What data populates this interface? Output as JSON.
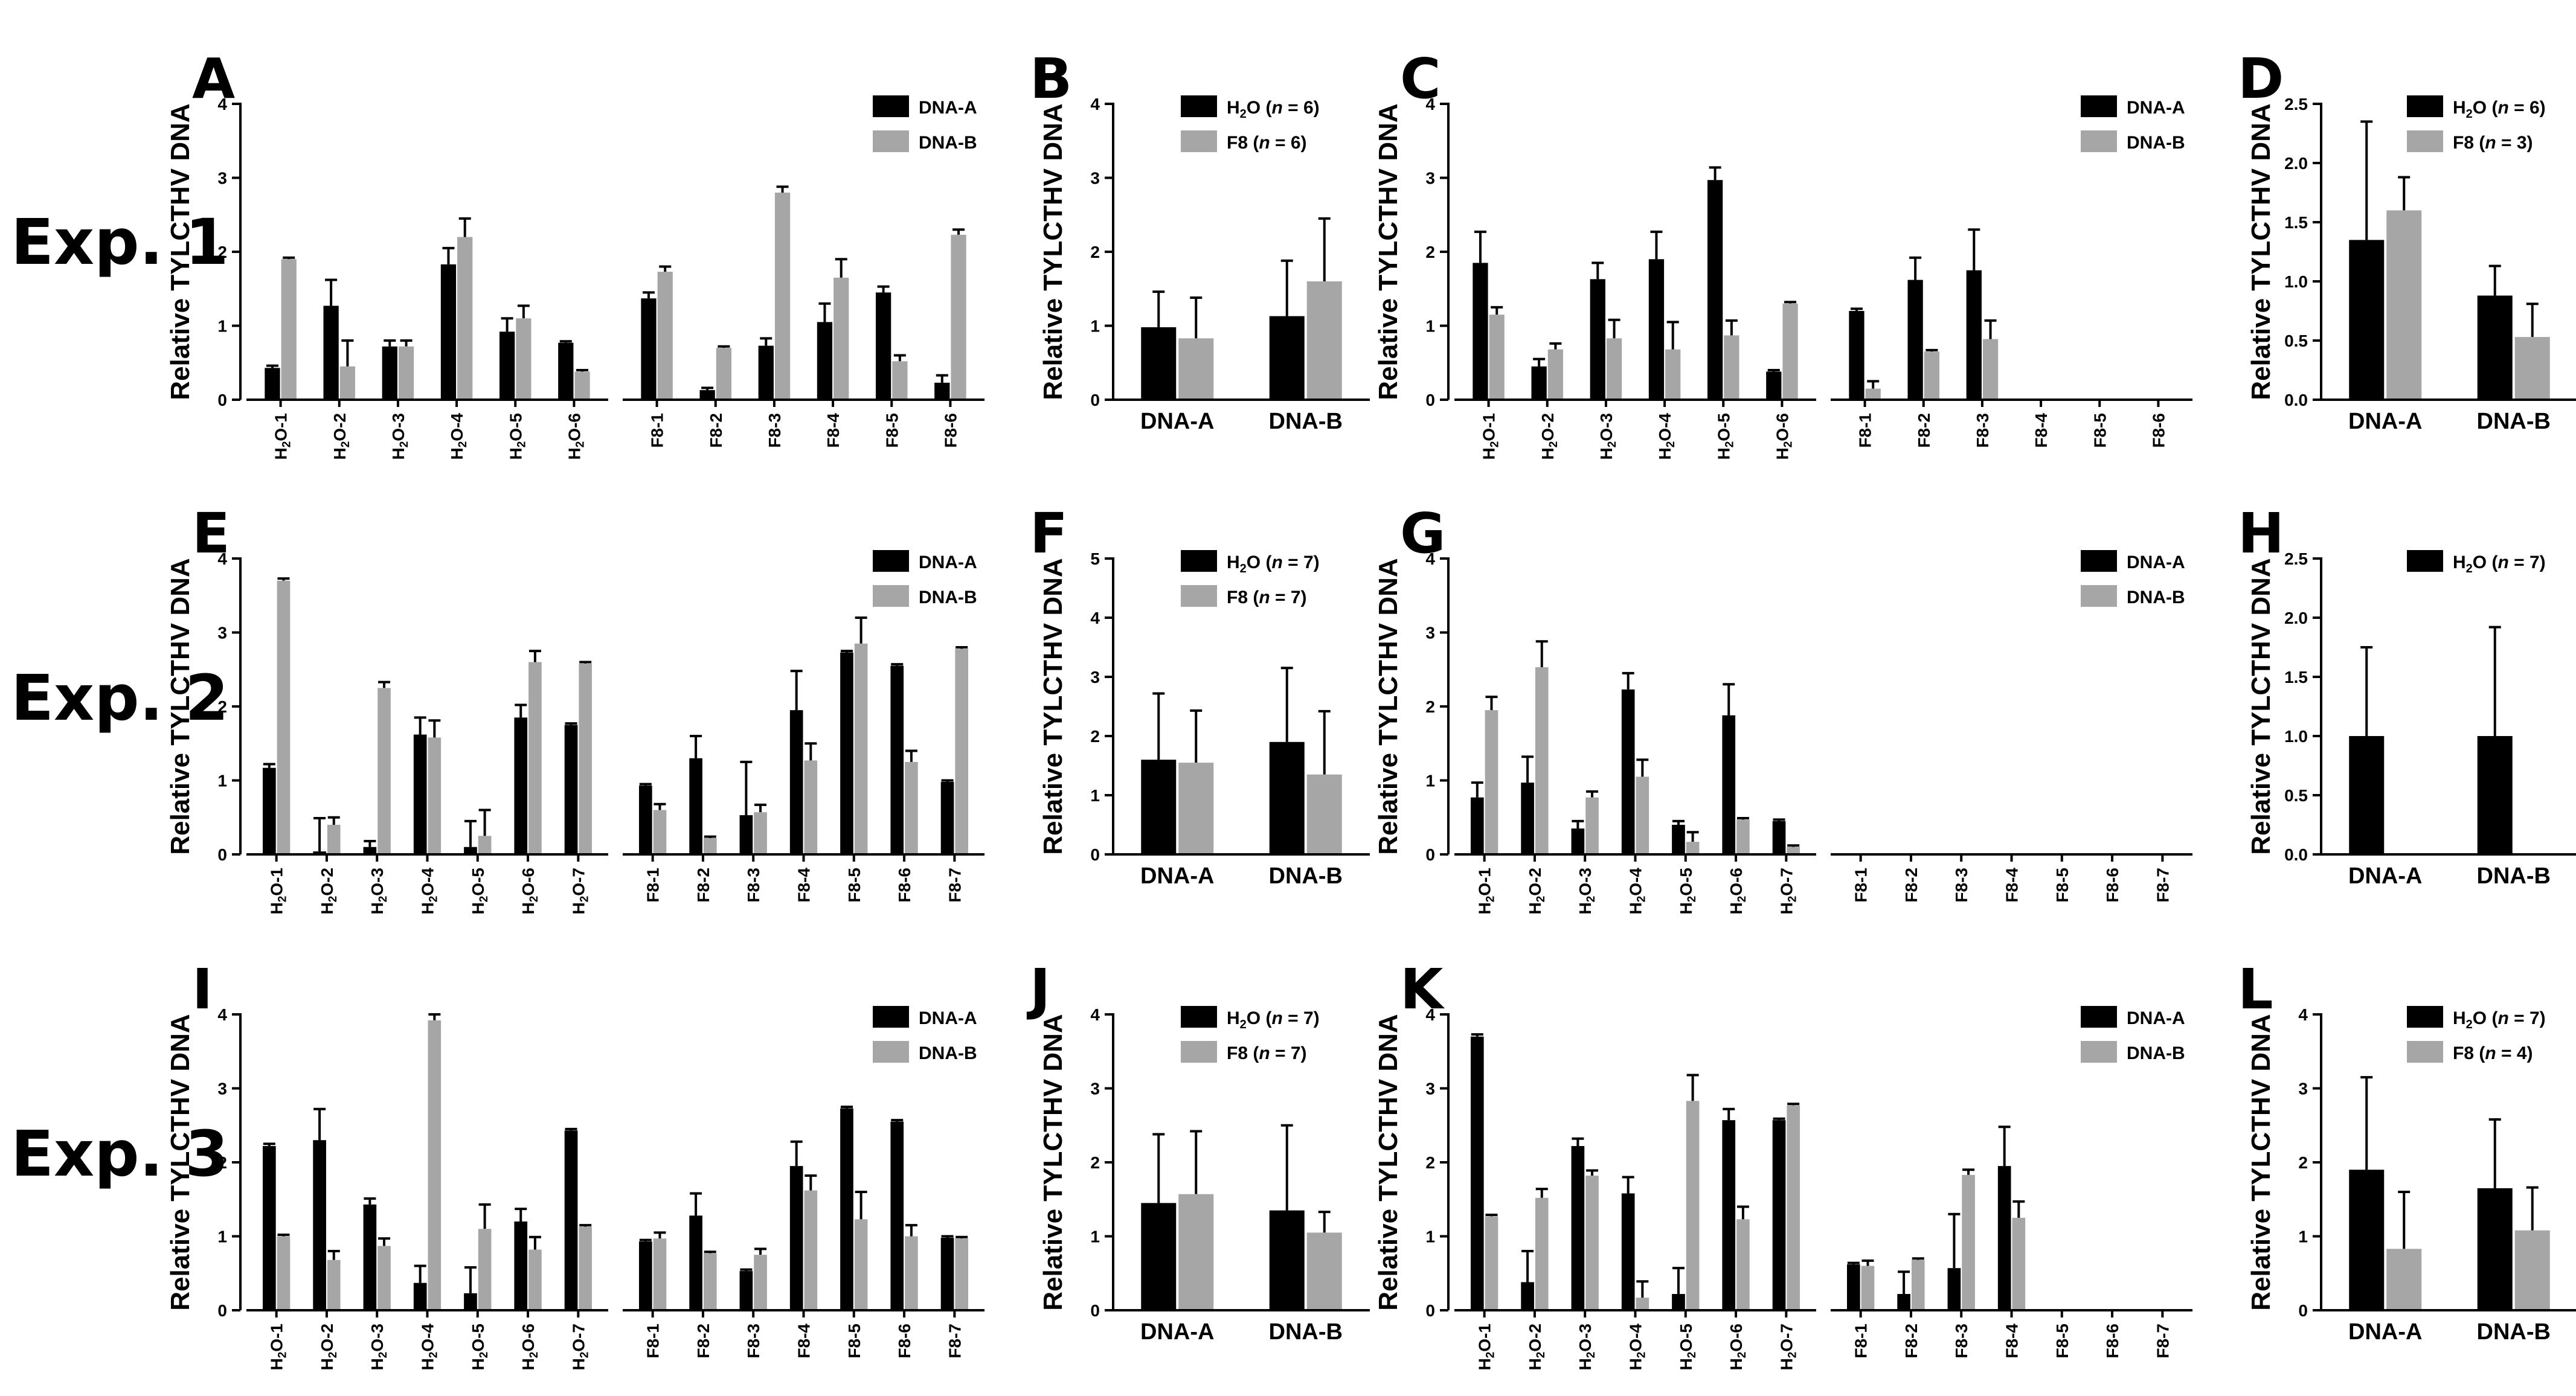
{
  "row_labels": [
    "Exp. 1",
    "Exp. 2",
    "Exp. 3"
  ],
  "colors": {
    "dna_a": "#000000",
    "dna_b": "#a6a6a6",
    "h2o": "#000000",
    "f8": "#a6a6a6"
  },
  "chart_data": [
    {
      "panel": "A",
      "type": "bar",
      "ylabel": "Relative TYLCTHV DNA",
      "ylim": [
        0,
        4
      ],
      "yticks": [
        "0",
        "1",
        "2",
        "3",
        "4"
      ],
      "groups": [
        {
          "labels": [
            "H2O-1",
            "H2O-2",
            "H2O-3",
            "H2O-4",
            "H2O-5",
            "H2O-6"
          ]
        },
        {
          "labels": [
            "F8-1",
            "F8-2",
            "F8-3",
            "F8-4",
            "F8-5",
            "F8-6"
          ]
        }
      ],
      "series": [
        {
          "name": "DNA-A",
          "values": [
            0.43,
            1.27,
            0.72,
            1.83,
            0.92,
            0.77,
            1.37,
            0.13,
            0.73,
            1.05,
            1.45,
            0.23
          ],
          "errors": [
            0.03,
            0.35,
            0.08,
            0.22,
            0.18,
            0.02,
            0.08,
            0.03,
            0.1,
            0.25,
            0.08,
            0.1
          ]
        },
        {
          "name": "DNA-B",
          "values": [
            1.9,
            0.45,
            0.72,
            2.2,
            1.1,
            0.38,
            1.73,
            0.7,
            2.8,
            1.65,
            0.52,
            2.23
          ],
          "errors": [
            0.02,
            0.35,
            0.08,
            0.25,
            0.17,
            0.02,
            0.07,
            0.02,
            0.08,
            0.25,
            0.08,
            0.07
          ]
        }
      ],
      "legend": [
        {
          "text": "DNA-A",
          "color": "#000000"
        },
        {
          "text": "DNA-B",
          "color": "#a6a6a6"
        }
      ]
    },
    {
      "panel": "B",
      "type": "bar",
      "ylabel": "Relative TYLCTHV DNA",
      "ylim": [
        0,
        4
      ],
      "yticks": [
        "0",
        "1",
        "2",
        "3",
        "4"
      ],
      "categories": [
        "DNA-A",
        "DNA-B"
      ],
      "series": [
        {
          "name": "H2O (n = 6)",
          "values": [
            0.98,
            1.13
          ],
          "errors": [
            0.48,
            0.75
          ]
        },
        {
          "name": "F8 (n = 6)",
          "values": [
            0.83,
            1.6
          ],
          "errors": [
            0.55,
            0.85
          ]
        }
      ],
      "legend": [
        {
          "pre": "H",
          "sub": "2",
          "post": "O (",
          "n": "n",
          "rest": " = 6)",
          "color": "#000000"
        },
        {
          "pre": "F8 (",
          "n": "n",
          "rest": " = 6)",
          "color": "#a6a6a6"
        }
      ]
    },
    {
      "panel": "C",
      "type": "bar",
      "ylabel": "Relative TYLCTHV DNA",
      "ylim": [
        0,
        4
      ],
      "yticks": [
        "0",
        "1",
        "2",
        "3",
        "4"
      ],
      "groups": [
        {
          "labels": [
            "H2O-1",
            "H2O-2",
            "H2O-3",
            "H2O-4",
            "H2O-5",
            "H2O-6"
          ]
        },
        {
          "labels": [
            "F8-1",
            "F8-2",
            "F8-3",
            "F8-4",
            "F8-5",
            "F8-6"
          ]
        }
      ],
      "series": [
        {
          "name": "DNA-A",
          "values": [
            1.85,
            0.45,
            1.63,
            1.9,
            2.97,
            0.38,
            1.2,
            1.62,
            1.75,
            null,
            null,
            null
          ],
          "errors": [
            0.42,
            0.1,
            0.22,
            0.37,
            0.17,
            0.02,
            0.03,
            0.3,
            0.55,
            null,
            null,
            null
          ]
        },
        {
          "name": "DNA-B",
          "values": [
            1.15,
            0.68,
            0.83,
            0.68,
            0.87,
            1.3,
            0.15,
            0.65,
            0.82,
            null,
            null,
            null
          ],
          "errors": [
            0.1,
            0.08,
            0.25,
            0.37,
            0.2,
            0.02,
            0.1,
            0.02,
            0.25,
            null,
            null,
            null
          ]
        }
      ],
      "legend": [
        {
          "text": "DNA-A",
          "color": "#000000"
        },
        {
          "text": "DNA-B",
          "color": "#a6a6a6"
        }
      ]
    },
    {
      "panel": "D",
      "type": "bar",
      "ylabel": "Relative TYLCTHV DNA",
      "ylim": [
        0,
        2.5
      ],
      "yticks": [
        "0.0",
        "0.5",
        "1.0",
        "1.5",
        "2.0",
        "2.5"
      ],
      "categories": [
        "DNA-A",
        "DNA-B"
      ],
      "series": [
        {
          "name": "H2O (n = 6)",
          "values": [
            1.35,
            0.88
          ],
          "errors": [
            1.0,
            0.25
          ]
        },
        {
          "name": "F8 (n = 3)",
          "values": [
            1.6,
            0.53
          ],
          "errors": [
            0.28,
            0.28
          ]
        }
      ],
      "legend": [
        {
          "pre": "H",
          "sub": "2",
          "post": "O (",
          "n": "n",
          "rest": " = 6)",
          "color": "#000000"
        },
        {
          "pre": "F8 (",
          "n": "n",
          "rest": " = 3)",
          "color": "#a6a6a6"
        }
      ]
    },
    {
      "panel": "E",
      "type": "bar",
      "ylabel": "Relative TYLCTHV DNA",
      "ylim": [
        0,
        4
      ],
      "yticks": [
        "0",
        "1",
        "2",
        "3",
        "4"
      ],
      "groups": [
        {
          "labels": [
            "H2O-1",
            "H2O-2",
            "H2O-3",
            "H2O-4",
            "H2O-5",
            "H2O-6",
            "H2O-7"
          ]
        },
        {
          "labels": [
            "F8-1",
            "F8-2",
            "F8-3",
            "F8-4",
            "F8-5",
            "F8-6",
            "F8-7"
          ]
        }
      ],
      "series": [
        {
          "name": "DNA-A",
          "values": [
            1.17,
            0.04,
            0.1,
            1.62,
            0.1,
            1.85,
            1.75,
            0.93,
            1.3,
            0.53,
            1.95,
            2.73,
            2.55,
            0.98
          ],
          "errors": [
            0.05,
            0.45,
            0.08,
            0.23,
            0.35,
            0.17,
            0.02,
            0.02,
            0.3,
            0.72,
            0.53,
            0.02,
            0.02,
            0.02
          ]
        },
        {
          "name": "DNA-B",
          "values": [
            3.7,
            0.4,
            2.25,
            1.58,
            0.25,
            2.6,
            2.58,
            0.6,
            0.22,
            0.57,
            1.27,
            2.85,
            1.25,
            2.78
          ],
          "errors": [
            0.03,
            0.1,
            0.08,
            0.23,
            0.35,
            0.15,
            0.02,
            0.08,
            0.02,
            0.1,
            0.23,
            0.35,
            0.15,
            0.02
          ]
        }
      ],
      "legend": [
        {
          "text": "DNA-A",
          "color": "#000000"
        },
        {
          "text": "DNA-B",
          "color": "#a6a6a6"
        }
      ]
    },
    {
      "panel": "F",
      "type": "bar",
      "ylabel": "Relative TYLCTHV DNA",
      "ylim": [
        0,
        5
      ],
      "yticks": [
        "0",
        "1",
        "2",
        "3",
        "4",
        "5"
      ],
      "categories": [
        "DNA-A",
        "DNA-B"
      ],
      "series": [
        {
          "name": "H2O (n = 7)",
          "values": [
            1.6,
            1.9
          ],
          "errors": [
            1.12,
            1.25
          ]
        },
        {
          "name": "F8 (n = 7)",
          "values": [
            1.55,
            1.35
          ],
          "errors": [
            0.88,
            1.07
          ]
        }
      ],
      "legend": [
        {
          "pre": "H",
          "sub": "2",
          "post": "O (",
          "n": "n",
          "rest": " = 7)",
          "color": "#000000"
        },
        {
          "pre": "F8 (",
          "n": "n",
          "rest": " = 7)",
          "color": "#a6a6a6"
        }
      ]
    },
    {
      "panel": "G",
      "type": "bar",
      "ylabel": "Relative TYLCTHV DNA",
      "ylim": [
        0,
        4
      ],
      "yticks": [
        "0",
        "1",
        "2",
        "3",
        "4"
      ],
      "groups": [
        {
          "labels": [
            "H2O-1",
            "H2O-2",
            "H2O-3",
            "H2O-4",
            "H2O-5",
            "H2O-6",
            "H2O-7"
          ]
        },
        {
          "labels": [
            "F8-1",
            "F8-2",
            "F8-3",
            "F8-4",
            "F8-5",
            "F8-6",
            "F8-7"
          ]
        }
      ],
      "series": [
        {
          "name": "DNA-A",
          "values": [
            0.77,
            0.97,
            0.35,
            2.23,
            0.4,
            1.88,
            0.45,
            null,
            null,
            null,
            null,
            null,
            null,
            null
          ],
          "errors": [
            0.2,
            0.35,
            0.1,
            0.22,
            0.05,
            0.42,
            0.02,
            null,
            null,
            null,
            null,
            null,
            null,
            null
          ]
        },
        {
          "name": "DNA-B",
          "values": [
            1.95,
            2.53,
            0.77,
            1.05,
            0.17,
            0.47,
            0.1,
            null,
            null,
            null,
            null,
            null,
            null,
            null
          ],
          "errors": [
            0.18,
            0.35,
            0.08,
            0.23,
            0.13,
            0.02,
            0.02,
            null,
            null,
            null,
            null,
            null,
            null,
            null
          ]
        }
      ],
      "legend": [
        {
          "text": "DNA-A",
          "color": "#000000"
        },
        {
          "text": "DNA-B",
          "color": "#a6a6a6"
        }
      ]
    },
    {
      "panel": "H",
      "type": "bar",
      "ylabel": "Relative TYLCTHV DNA",
      "ylim": [
        0,
        2.5
      ],
      "yticks": [
        "0.0",
        "0.5",
        "1.0",
        "1.5",
        "2.0",
        "2.5"
      ],
      "categories": [
        "DNA-A",
        "DNA-B"
      ],
      "series": [
        {
          "name": "H2O (n = 7)",
          "values": [
            1.0,
            1.0
          ],
          "errors": [
            0.75,
            0.92
          ]
        }
      ],
      "legend": [
        {
          "pre": "H",
          "sub": "2",
          "post": "O (",
          "n": "n",
          "rest": " = 7)",
          "color": "#000000"
        }
      ]
    },
    {
      "panel": "I",
      "type": "bar",
      "ylabel": "Relative TYLCTHV DNA",
      "ylim": [
        0,
        4
      ],
      "yticks": [
        "0",
        "1",
        "2",
        "3",
        "4"
      ],
      "groups": [
        {
          "labels": [
            "H2O-1",
            "H2O-2",
            "H2O-3",
            "H2O-4",
            "H2O-5",
            "H2O-6",
            "H2O-7"
          ]
        },
        {
          "labels": [
            "F8-1",
            "F8-2",
            "F8-3",
            "F8-4",
            "F8-5",
            "F8-6",
            "F8-7"
          ]
        }
      ],
      "series": [
        {
          "name": "DNA-A",
          "values": [
            2.22,
            2.3,
            1.43,
            0.37,
            0.23,
            1.2,
            2.43,
            0.93,
            1.28,
            0.53,
            1.95,
            2.73,
            2.55,
            0.98
          ],
          "errors": [
            0.03,
            0.42,
            0.08,
            0.23,
            0.35,
            0.17,
            0.02,
            0.02,
            0.3,
            0.02,
            0.33,
            0.02,
            0.02,
            0.02
          ]
        },
        {
          "name": "DNA-B",
          "values": [
            1.0,
            0.68,
            0.87,
            3.92,
            1.1,
            0.82,
            1.13,
            0.97,
            0.77,
            0.75,
            1.62,
            1.23,
            1.0,
            0.97
          ],
          "errors": [
            0.02,
            0.12,
            0.1,
            0.08,
            0.33,
            0.17,
            0.02,
            0.08,
            0.02,
            0.08,
            0.2,
            0.37,
            0.15,
            0.02
          ]
        }
      ],
      "legend": [
        {
          "text": "DNA-A",
          "color": "#000000"
        },
        {
          "text": "DNA-B",
          "color": "#a6a6a6"
        }
      ]
    },
    {
      "panel": "J",
      "type": "bar",
      "ylabel": "Relative TYLCTHV DNA",
      "ylim": [
        0,
        4
      ],
      "yticks": [
        "0",
        "1",
        "2",
        "3",
        "4"
      ],
      "categories": [
        "DNA-A",
        "DNA-B"
      ],
      "series": [
        {
          "name": "H2O (n = 7)",
          "values": [
            1.45,
            1.35
          ],
          "errors": [
            0.93,
            1.15
          ]
        },
        {
          "name": "F8 (n = 7)",
          "values": [
            1.57,
            1.05
          ],
          "errors": [
            0.85,
            0.28
          ]
        }
      ],
      "legend": [
        {
          "pre": "H",
          "sub": "2",
          "post": "O (",
          "n": "n",
          "rest": " = 7)",
          "color": "#000000"
        },
        {
          "pre": "F8 (",
          "n": "n",
          "rest": " = 7)",
          "color": "#a6a6a6"
        }
      ]
    },
    {
      "panel": "K",
      "type": "bar",
      "ylabel": "Relative TYLCTHV DNA",
      "ylim": [
        0,
        4
      ],
      "yticks": [
        "0",
        "1",
        "2",
        "3",
        "4"
      ],
      "groups": [
        {
          "labels": [
            "H2O-1",
            "H2O-2",
            "H2O-3",
            "H2O-4",
            "H2O-5",
            "H2O-6",
            "H2O-7"
          ]
        },
        {
          "labels": [
            "F8-1",
            "F8-2",
            "F8-3",
            "F8-4",
            "F8-5",
            "F8-6",
            "F8-7"
          ]
        }
      ],
      "series": [
        {
          "name": "DNA-A",
          "values": [
            3.7,
            0.38,
            2.22,
            1.58,
            0.22,
            2.57,
            2.57,
            0.62,
            0.22,
            0.57,
            1.95,
            null,
            null,
            null
          ],
          "errors": [
            0.03,
            0.42,
            0.1,
            0.22,
            0.35,
            0.15,
            0.02,
            0.02,
            0.3,
            0.73,
            0.53,
            null,
            null,
            null
          ]
        },
        {
          "name": "DNA-B",
          "values": [
            1.27,
            1.52,
            1.82,
            0.17,
            2.83,
            1.23,
            2.77,
            0.6,
            0.68,
            1.83,
            1.25,
            null,
            null,
            null
          ],
          "errors": [
            0.02,
            0.12,
            0.07,
            0.22,
            0.35,
            0.17,
            0.02,
            0.07,
            0.02,
            0.07,
            0.22,
            null,
            null,
            null
          ]
        }
      ],
      "legend": [
        {
          "text": "DNA-A",
          "color": "#000000"
        },
        {
          "text": "DNA-B",
          "color": "#a6a6a6"
        }
      ]
    },
    {
      "panel": "L",
      "type": "bar",
      "ylabel": "Relative TYLCTHV DNA",
      "ylim": [
        0,
        4
      ],
      "yticks": [
        "0",
        "1",
        "2",
        "3",
        "4"
      ],
      "categories": [
        "DNA-A",
        "DNA-B"
      ],
      "series": [
        {
          "name": "H2O (n = 7)",
          "values": [
            1.9,
            1.65
          ],
          "errors": [
            1.25,
            0.93
          ]
        },
        {
          "name": "F8 (n = 4)",
          "values": [
            0.83,
            1.08
          ],
          "errors": [
            0.77,
            0.58
          ]
        }
      ],
      "legend": [
        {
          "pre": "H",
          "sub": "2",
          "post": "O (",
          "n": "n",
          "rest": " = 7)",
          "color": "#000000"
        },
        {
          "pre": "F8 (",
          "n": "n",
          "rest": " = 4)",
          "color": "#a6a6a6"
        }
      ]
    }
  ]
}
